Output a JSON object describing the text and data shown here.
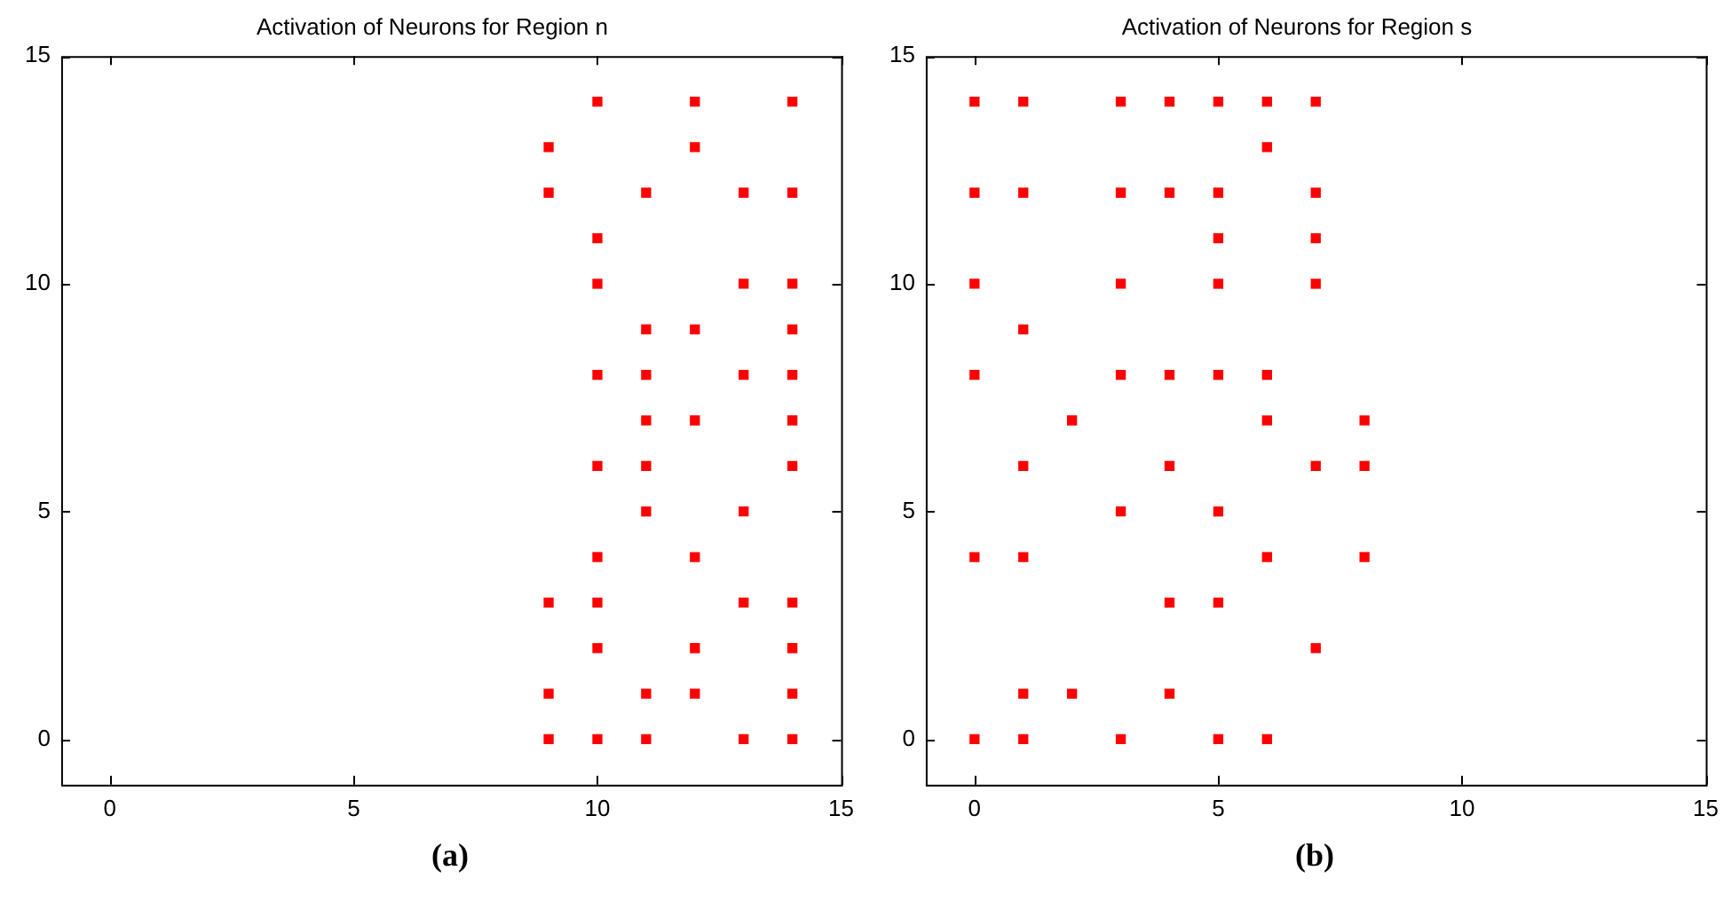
{
  "chart_data": [
    {
      "type": "scatter",
      "title": "Activation of Neurons for Region n",
      "annotations": [
        "(a)"
      ],
      "xlim": [
        -1,
        15
      ],
      "ylim": [
        -1,
        15
      ],
      "xticks": [
        0,
        5,
        10,
        15
      ],
      "yticks": [
        0,
        5,
        10,
        15
      ],
      "grid": false,
      "legend": false,
      "marker": "square",
      "series": [
        {
          "color": "#ff0000",
          "x": [
            10,
            12,
            14,
            9,
            12,
            9,
            11,
            13,
            14,
            10,
            10,
            13,
            14,
            11,
            12,
            14,
            10,
            11,
            13,
            14,
            11,
            12,
            14,
            10,
            11,
            14,
            11,
            13,
            10,
            12,
            9,
            10,
            13,
            14,
            10,
            12,
            14,
            9,
            11,
            12,
            14,
            9,
            10,
            11,
            13,
            14
          ],
          "values": [
            14,
            14,
            14,
            13,
            13,
            12,
            12,
            12,
            12,
            11,
            10,
            10,
            10,
            9,
            9,
            9,
            8,
            8,
            8,
            8,
            7,
            7,
            7,
            6,
            6,
            6,
            5,
            5,
            4,
            4,
            3,
            3,
            3,
            3,
            2,
            2,
            2,
            1,
            1,
            1,
            1,
            0,
            0,
            0,
            0,
            0
          ]
        }
      ]
    },
    {
      "type": "scatter",
      "title": "Activation of Neurons for Region s",
      "annotations": [
        "(b)"
      ],
      "xlim": [
        -1,
        15
      ],
      "ylim": [
        -1,
        15
      ],
      "xticks": [
        0,
        5,
        10,
        15
      ],
      "yticks": [
        0,
        5,
        10,
        15
      ],
      "grid": false,
      "legend": false,
      "marker": "square",
      "series": [
        {
          "color": "#ff0000",
          "x": [
            0,
            1,
            3,
            4,
            5,
            6,
            7,
            6,
            0,
            1,
            3,
            4,
            5,
            7,
            5,
            7,
            0,
            3,
            5,
            7,
            1,
            0,
            3,
            4,
            5,
            6,
            2,
            6,
            8,
            1,
            4,
            7,
            8,
            3,
            5,
            0,
            1,
            6,
            8,
            4,
            5,
            7,
            1,
            2,
            4,
            0,
            1,
            3,
            5,
            6
          ],
          "values": [
            14,
            14,
            14,
            14,
            14,
            14,
            14,
            13,
            12,
            12,
            12,
            12,
            12,
            12,
            11,
            11,
            10,
            10,
            10,
            10,
            9,
            8,
            8,
            8,
            8,
            8,
            7,
            7,
            7,
            6,
            6,
            6,
            6,
            5,
            5,
            4,
            4,
            4,
            4,
            3,
            3,
            2,
            1,
            1,
            1,
            0,
            0,
            0,
            0,
            0
          ]
        }
      ]
    }
  ]
}
